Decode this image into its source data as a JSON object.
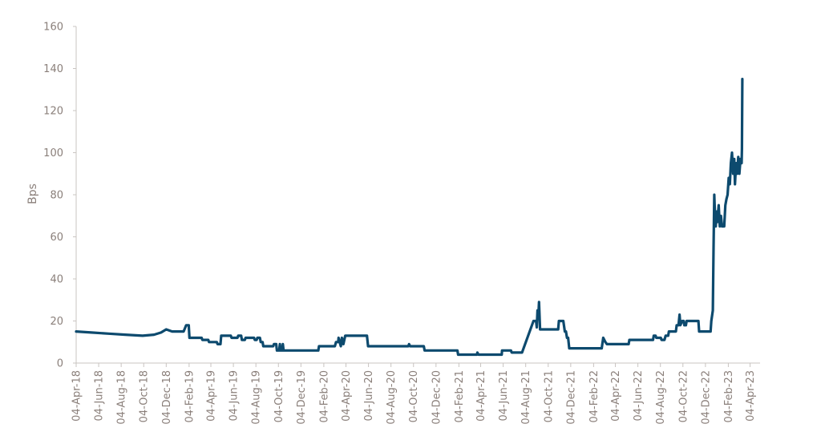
{
  "chart_data": {
    "type": "line",
    "title": "",
    "xlabel": "",
    "ylabel": "Bps",
    "ylim": [
      0,
      160
    ],
    "xlim": [
      "2018-04-04",
      "2023-05-01"
    ],
    "grid": false,
    "legend": "none",
    "y_ticks": [
      "0",
      "20",
      "40",
      "60",
      "80",
      "100",
      "120",
      "140",
      "160"
    ],
    "x_tick_dates": [
      "2018-04-04",
      "2018-06-04",
      "2018-08-04",
      "2018-10-04",
      "2018-12-04",
      "2019-02-04",
      "2019-04-04",
      "2019-06-04",
      "2019-08-04",
      "2019-10-04",
      "2019-12-04",
      "2020-02-04",
      "2020-04-04",
      "2020-06-04",
      "2020-08-04",
      "2020-10-04",
      "2020-12-04",
      "2021-02-04",
      "2021-04-04",
      "2021-06-04",
      "2021-08-04",
      "2021-10-04",
      "2021-12-04",
      "2022-02-04",
      "2022-04-04",
      "2022-06-04",
      "2022-08-04",
      "2022-10-04",
      "2022-12-04",
      "2023-02-04",
      "2023-04-04"
    ],
    "x_tick_labels": [
      "04-Apr-18",
      "04-Jun-18",
      "04-Aug-18",
      "04-Oct-18",
      "04-Dec-18",
      "04-Feb-19",
      "04-Apr-19",
      "04-Jun-19",
      "04-Aug-19",
      "04-Oct-19",
      "04-Dec-19",
      "04-Feb-20",
      "04-Apr-20",
      "04-Jun-20",
      "04-Aug-20",
      "04-Oct-20",
      "04-Dec-20",
      "04-Feb-21",
      "04-Apr-21",
      "04-Jun-21",
      "04-Aug-21",
      "04-Oct-21",
      "04-Dec-21",
      "04-Feb-22",
      "04-Apr-22",
      "04-Jun-22",
      "04-Aug-22",
      "04-Oct-22",
      "04-Dec-22",
      "04-Feb-23",
      "04-Apr-23"
    ],
    "colors": {
      "line": "#0d4a6e",
      "axis": "#c9c4c1",
      "text": "#8a7f7a"
    },
    "series": [
      {
        "points": [
          [
            "2018-04-04",
            15
          ],
          [
            "2018-05-15",
            14.5
          ],
          [
            "2018-07-01",
            14
          ],
          [
            "2018-08-15",
            13.5
          ],
          [
            "2018-10-01",
            13
          ],
          [
            "2018-11-01",
            13.5
          ],
          [
            "2018-11-20",
            14.5
          ],
          [
            "2018-12-04",
            16
          ],
          [
            "2018-12-20",
            15
          ],
          [
            "2019-01-20",
            15
          ],
          [
            "2019-01-27",
            18
          ],
          [
            "2019-02-03",
            18
          ],
          [
            "2019-02-05",
            12
          ],
          [
            "2019-03-10",
            12
          ],
          [
            "2019-03-12",
            11
          ],
          [
            "2019-03-28",
            11
          ],
          [
            "2019-03-30",
            10
          ],
          [
            "2019-04-20",
            10
          ],
          [
            "2019-04-22",
            9
          ],
          [
            "2019-04-30",
            9
          ],
          [
            "2019-05-02",
            13
          ],
          [
            "2019-05-28",
            13
          ],
          [
            "2019-05-30",
            12
          ],
          [
            "2019-06-15",
            12
          ],
          [
            "2019-06-17",
            13
          ],
          [
            "2019-06-25",
            13
          ],
          [
            "2019-06-27",
            11
          ],
          [
            "2019-07-05",
            11
          ],
          [
            "2019-07-07",
            12
          ],
          [
            "2019-07-30",
            12
          ],
          [
            "2019-08-01",
            11
          ],
          [
            "2019-08-06",
            11
          ],
          [
            "2019-08-08",
            12
          ],
          [
            "2019-08-15",
            12
          ],
          [
            "2019-08-17",
            10
          ],
          [
            "2019-08-22",
            10
          ],
          [
            "2019-08-24",
            8
          ],
          [
            "2019-09-20",
            8
          ],
          [
            "2019-09-22",
            9
          ],
          [
            "2019-09-28",
            9
          ],
          [
            "2019-09-30",
            6
          ],
          [
            "2019-10-06",
            6
          ],
          [
            "2019-10-08",
            9
          ],
          [
            "2019-10-10",
            6
          ],
          [
            "2019-10-14",
            6
          ],
          [
            "2019-10-16",
            9
          ],
          [
            "2019-10-18",
            6
          ],
          [
            "2020-01-20",
            6
          ],
          [
            "2020-01-22",
            8
          ],
          [
            "2020-03-05",
            8
          ],
          [
            "2020-03-08",
            10
          ],
          [
            "2020-03-14",
            10
          ],
          [
            "2020-03-15",
            12
          ],
          [
            "2020-03-21",
            8
          ],
          [
            "2020-03-24",
            12
          ],
          [
            "2020-03-28",
            9
          ],
          [
            "2020-04-02",
            13
          ],
          [
            "2020-05-31",
            13
          ],
          [
            "2020-06-03",
            8
          ],
          [
            "2020-09-20",
            8
          ],
          [
            "2020-09-22",
            9
          ],
          [
            "2020-09-25",
            8
          ],
          [
            "2020-11-01",
            8
          ],
          [
            "2020-11-03",
            6
          ],
          [
            "2021-01-31",
            6
          ],
          [
            "2021-02-02",
            4
          ],
          [
            "2021-03-25",
            4
          ],
          [
            "2021-03-26",
            5
          ],
          [
            "2021-03-29",
            4
          ],
          [
            "2021-05-31",
            4
          ],
          [
            "2021-06-01",
            6
          ],
          [
            "2021-06-25",
            6
          ],
          [
            "2021-06-27",
            5
          ],
          [
            "2021-07-25",
            5
          ],
          [
            "2021-08-25",
            20
          ],
          [
            "2021-09-01",
            20
          ],
          [
            "2021-09-03",
            17
          ],
          [
            "2021-09-05",
            25
          ],
          [
            "2021-09-07",
            21
          ],
          [
            "2021-09-09",
            29
          ],
          [
            "2021-09-12",
            16
          ],
          [
            "2021-10-31",
            16
          ],
          [
            "2021-11-02",
            20
          ],
          [
            "2021-11-14",
            20
          ],
          [
            "2021-11-18",
            15
          ],
          [
            "2021-11-21",
            15
          ],
          [
            "2021-11-24",
            12
          ],
          [
            "2021-11-27",
            12
          ],
          [
            "2021-11-30",
            7
          ],
          [
            "2022-02-26",
            7
          ],
          [
            "2022-03-02",
            12
          ],
          [
            "2022-03-08",
            10
          ],
          [
            "2022-03-12",
            9
          ],
          [
            "2022-05-10",
            9
          ],
          [
            "2022-05-12",
            11
          ],
          [
            "2022-07-15",
            11
          ],
          [
            "2022-07-17",
            13
          ],
          [
            "2022-07-22",
            13
          ],
          [
            "2022-07-24",
            12
          ],
          [
            "2022-08-05",
            12
          ],
          [
            "2022-08-07",
            11
          ],
          [
            "2022-08-15",
            11
          ],
          [
            "2022-08-18",
            13
          ],
          [
            "2022-08-25",
            13
          ],
          [
            "2022-08-27",
            15
          ],
          [
            "2022-09-15",
            15
          ],
          [
            "2022-09-17",
            18
          ],
          [
            "2022-09-22",
            18
          ],
          [
            "2022-09-25",
            23
          ],
          [
            "2022-09-27",
            18
          ],
          [
            "2022-10-02",
            20
          ],
          [
            "2022-10-06",
            20
          ],
          [
            "2022-10-08",
            18
          ],
          [
            "2022-10-12",
            18
          ],
          [
            "2022-10-14",
            20
          ],
          [
            "2022-11-15",
            20
          ],
          [
            "2022-11-17",
            15
          ],
          [
            "2022-12-18",
            15
          ],
          [
            "2022-12-20",
            20
          ],
          [
            "2022-12-24",
            25
          ],
          [
            "2022-12-26",
            55
          ],
          [
            "2022-12-28",
            80
          ],
          [
            "2022-12-30",
            70
          ],
          [
            "2023-01-01",
            65
          ],
          [
            "2023-01-03",
            72
          ],
          [
            "2023-01-05",
            67
          ],
          [
            "2023-01-09",
            75
          ],
          [
            "2023-01-12",
            65
          ],
          [
            "2023-01-15",
            70
          ],
          [
            "2023-01-18",
            65
          ],
          [
            "2023-01-24",
            65
          ],
          [
            "2023-01-27",
            75
          ],
          [
            "2023-01-30",
            78
          ],
          [
            "2023-02-02",
            80
          ],
          [
            "2023-02-05",
            88
          ],
          [
            "2023-02-08",
            85
          ],
          [
            "2023-02-11",
            95
          ],
          [
            "2023-02-14",
            100
          ],
          [
            "2023-02-17",
            90
          ],
          [
            "2023-02-20",
            97
          ],
          [
            "2023-02-22",
            85
          ],
          [
            "2023-02-25",
            95
          ],
          [
            "2023-02-28",
            90
          ],
          [
            "2023-03-03",
            98
          ],
          [
            "2023-03-06",
            90
          ],
          [
            "2023-03-09",
            97
          ],
          [
            "2023-03-12",
            95
          ],
          [
            "2023-03-13",
            102
          ],
          [
            "2023-03-14",
            135
          ]
        ]
      }
    ]
  }
}
